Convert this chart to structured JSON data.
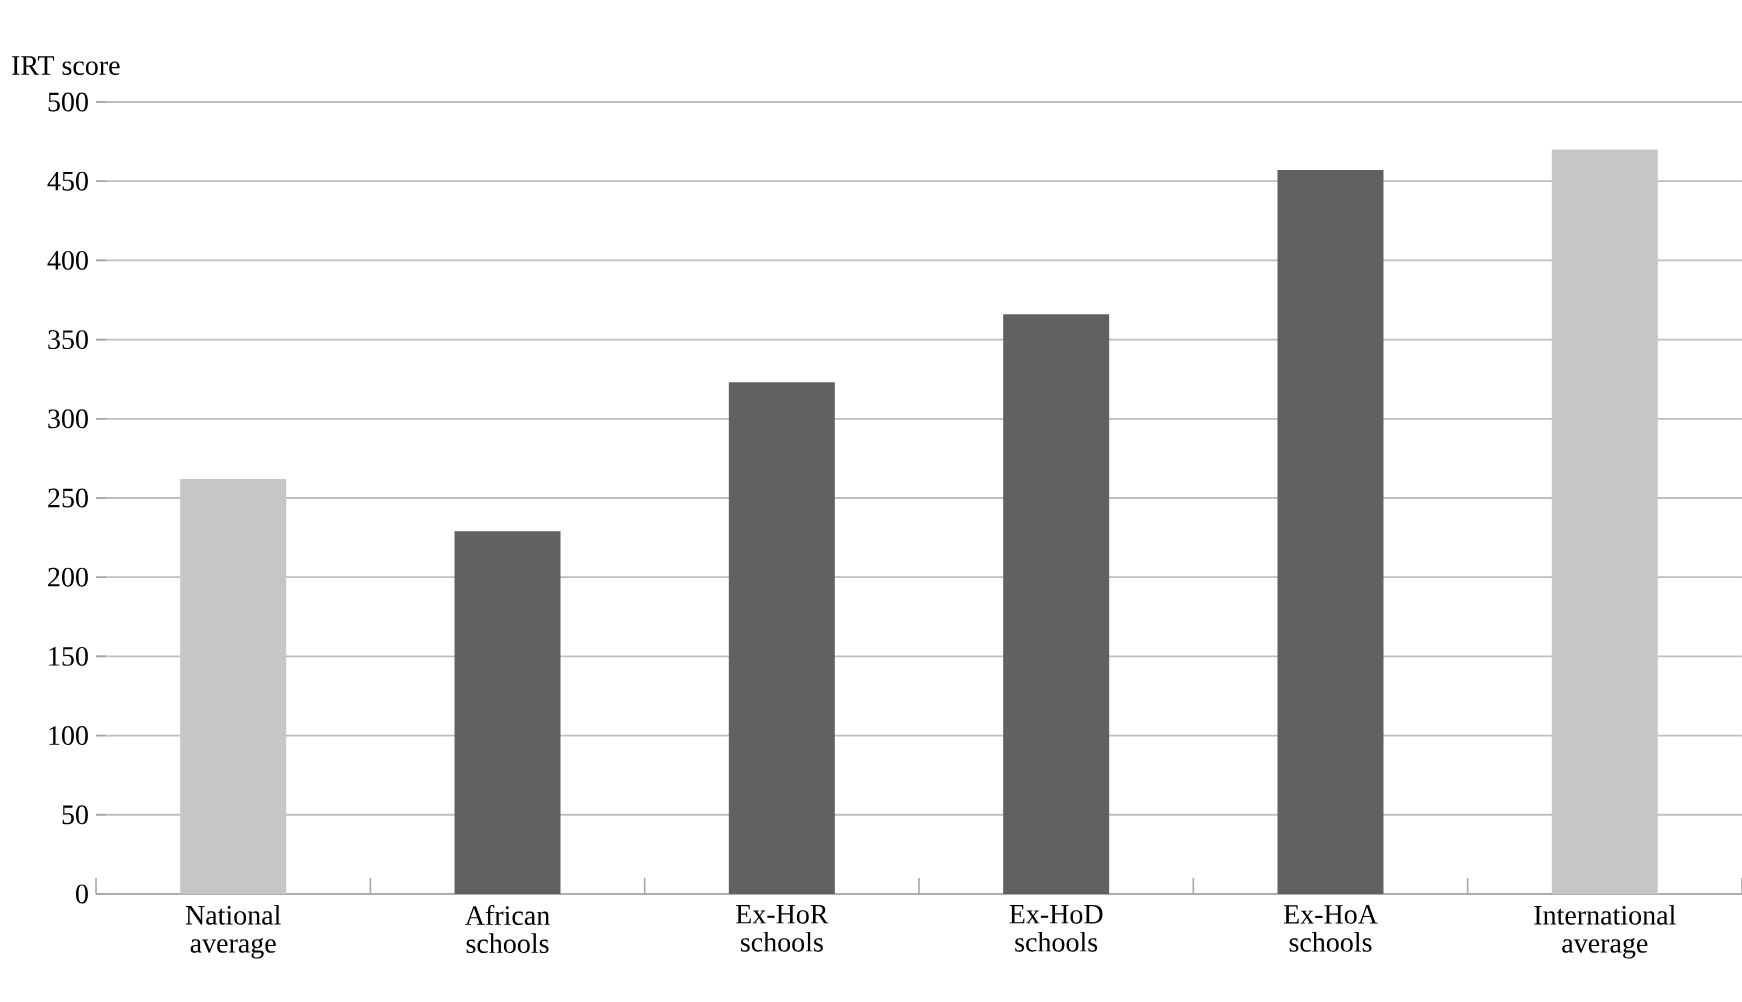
{
  "chart_data": {
    "type": "bar",
    "ylabel": "IRT score",
    "categories": [
      "National average",
      "African schools",
      "Ex-HoR schools",
      "Ex-HoD schools",
      "Ex-HoA schools",
      "International average"
    ],
    "values": [
      262,
      229,
      323,
      366,
      457,
      470
    ],
    "colors": [
      "#c5c6c8",
      "#616163",
      "#616163",
      "#616163",
      "#616163",
      "#c5c6c8"
    ],
    "ylim": [
      0,
      500
    ],
    "yticks": [
      0,
      50,
      100,
      150,
      200,
      250,
      300,
      350,
      400,
      450,
      500
    ],
    "grid": "y"
  }
}
